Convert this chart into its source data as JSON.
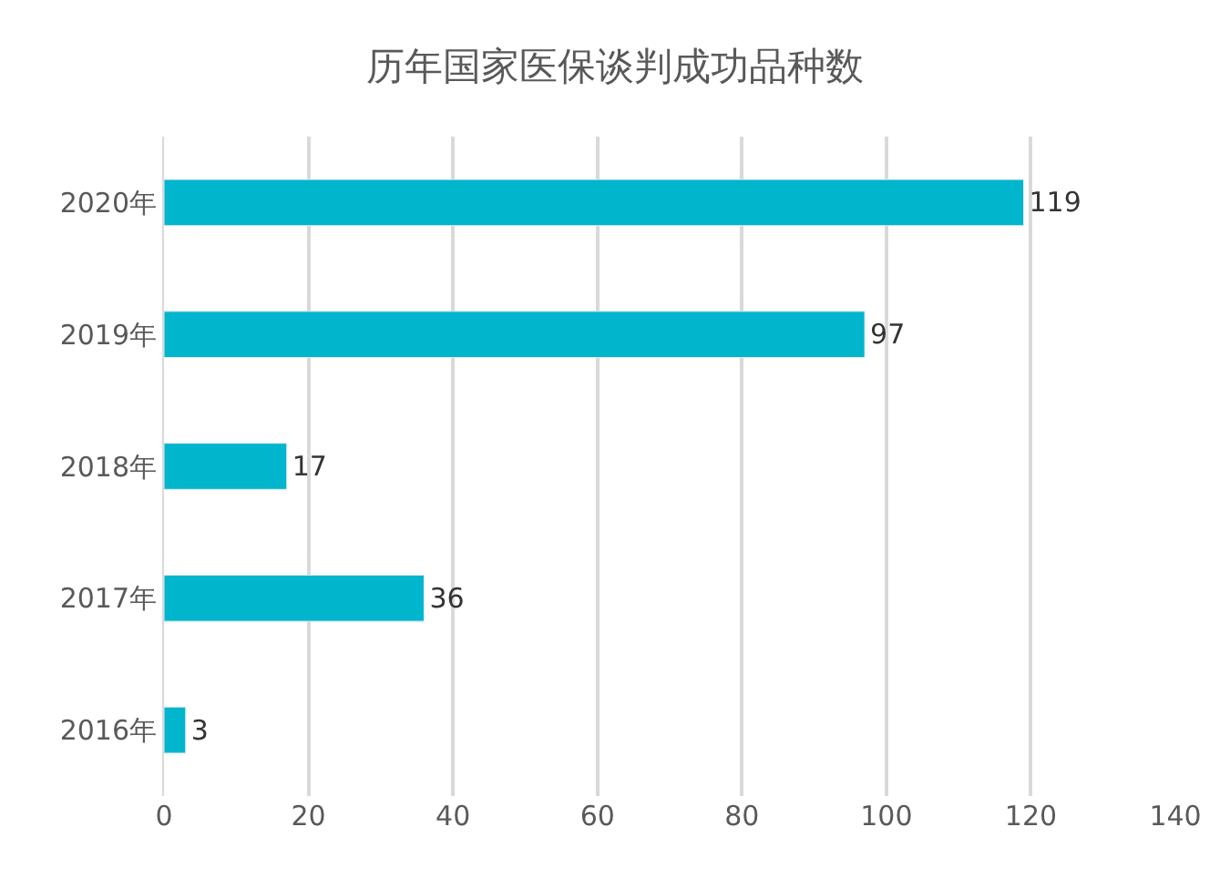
{
  "chart_data": {
    "type": "bar",
    "orientation": "horizontal",
    "title": "历年国家医保谈判成功品种数",
    "categories": [
      "2020年",
      "2019年",
      "2018年",
      "2017年",
      "2016年"
    ],
    "values": [
      119,
      97,
      17,
      36,
      3
    ],
    "color": "#00b5cc",
    "xlim": [
      0,
      140
    ],
    "xticks": [
      0,
      20,
      40,
      60,
      80,
      100,
      120,
      140
    ],
    "grid": "x",
    "data_labels": true,
    "legend": false
  }
}
